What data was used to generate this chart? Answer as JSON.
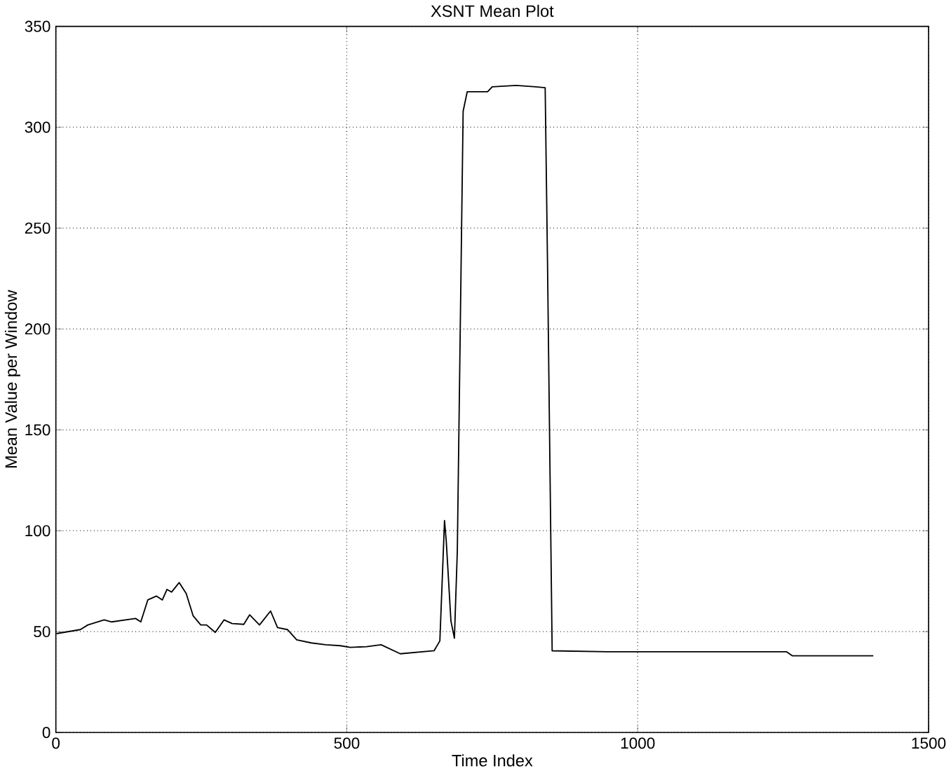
{
  "chart_data": {
    "type": "line",
    "title": "XSNT Mean Plot",
    "xlabel": "Time Index",
    "ylabel": "Mean Value per Window",
    "xlim": [
      0,
      1500
    ],
    "ylim": [
      0,
      350
    ],
    "xticks": [
      0,
      500,
      1000,
      1500
    ],
    "yticks": [
      0,
      50,
      100,
      150,
      200,
      250,
      300,
      350
    ],
    "grid": true,
    "line_style": "solid",
    "marker": "none",
    "series": [
      {
        "color": "#000000",
        "x": [
          1,
          42,
          55,
          83,
          96,
          137,
          146,
          158,
          173,
          183,
          191,
          199,
          212,
          224,
          236,
          249,
          259,
          274,
          289,
          303,
          323,
          333,
          350,
          369,
          381,
          398,
          414,
          439,
          464,
          489,
          506,
          534,
          559,
          592,
          650,
          660,
          668,
          671,
          679,
          685,
          690,
          700,
          707,
          742,
          750,
          791,
          825,
          841,
          845,
          853,
          948,
          1256,
          1266,
          1405
        ],
        "values": [
          49,
          51,
          53.3,
          55.8,
          54.8,
          56.5,
          54.8,
          65.7,
          67.6,
          65.7,
          70.9,
          69.6,
          74.3,
          68.9,
          57.8,
          53.3,
          53.3,
          49.6,
          55.8,
          54,
          53.6,
          58.3,
          53.3,
          60.2,
          52,
          51,
          45.9,
          44.4,
          43.5,
          43,
          42.2,
          42.5,
          43.5,
          39,
          40.5,
          45.4,
          105,
          94.8,
          55.3,
          46.7,
          89.9,
          307.9,
          317.6,
          317.6,
          320,
          320.7,
          320,
          319.6,
          233,
          40.5,
          40,
          40,
          38,
          38
        ]
      }
    ]
  }
}
